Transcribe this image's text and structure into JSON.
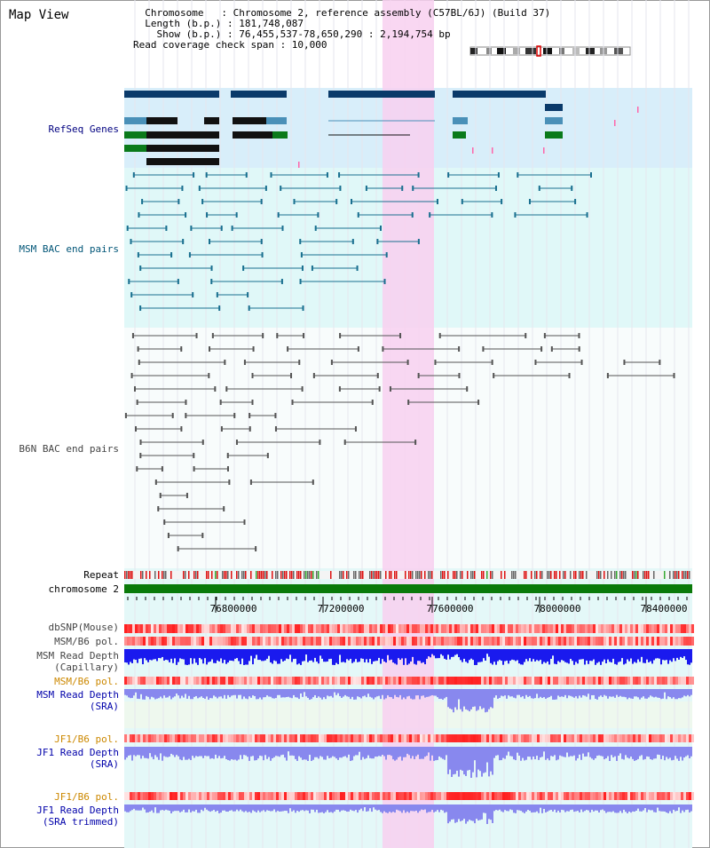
{
  "header": {
    "title": "Map View",
    "info_lines": [
      "  Chromosome   : Chromosome 2, reference assembly (C57BL/6J) (Build 37)",
      "  Length (b.p.) : 181,748,087",
      "    Show (b.p.) : 76,455,537-78,650,290 : 2,194,754 bp",
      "Read coverage check span : 10,000"
    ]
  },
  "tracks": {
    "refseq": "RefSeq Genes",
    "msm_bac": "MSM BAC end pairs",
    "b6n_bac": "B6N BAC end pairs",
    "repeat": "Repeat",
    "chromosome": "chromosome 2",
    "dbsnp": "dbSNP(Mouse)",
    "msm_b6_pol_1": "MSM/B6 pol.",
    "msm_read_depth_cap": "MSM Read Depth\n(Capillary)",
    "msm_b6_pol_2": "MSM/B6 pol.",
    "msm_read_depth_sra": "MSM Read Depth\n(SRA)",
    "jf1_b6_pol_1": "JF1/B6 pol.",
    "jf1_read_depth_sra": "JF1 Read Depth\n(SRA)",
    "jf1_b6_pol_2": "JF1/B6 pol.",
    "jf1_read_depth_trimmed": "JF1 Read Depth\n(SRA trimmed)"
  },
  "axis": {
    "ticks": [
      "76800000",
      "77200000",
      "77600000",
      "78000000",
      "78400000"
    ]
  },
  "colors": {
    "refseq_bg": "#d8eefa",
    "bac_bg": "#e0f8f8",
    "highlight": "#f8d0f0",
    "gene_dark": "#0a3a6a",
    "gene_mid": "#4a90b8",
    "gene_green": "#0a7a1a",
    "msm_bac": "#1a7090",
    "b6n_bac": "#555555",
    "chromosome": "#0a7a0a",
    "depth_capillary": "#1a1aee",
    "depth_sra": "#8888ee"
  }
}
